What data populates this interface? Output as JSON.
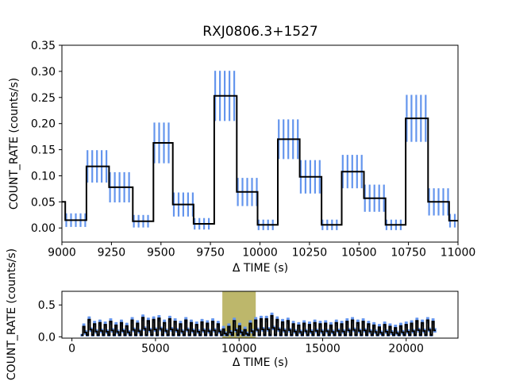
{
  "colors": {
    "line": "#000000",
    "errorbar": "#6495ED",
    "highlight": "#bdb76b",
    "axis": "#000000",
    "text": "#000000",
    "background": "#ffffff"
  },
  "chart_data": [
    {
      "type": "step",
      "title": "RXJ0806.3+1527",
      "xlabel": "Δ TIME (s)",
      "ylabel": "COUNT_RATE (counts/s)",
      "xlim": [
        9000,
        11000
      ],
      "ylim": [
        -0.027,
        0.35
      ],
      "xticks": [
        9000,
        9250,
        9500,
        9750,
        10000,
        10250,
        10500,
        10750,
        11000
      ],
      "xtick_labels": [
        "9000",
        "9250",
        "9500",
        "9750",
        "10000",
        "10250",
        "10500",
        "10750",
        "11000"
      ],
      "yticks": [
        0.0,
        0.05,
        0.1,
        0.15,
        0.2,
        0.25,
        0.3,
        0.35
      ],
      "ytick_labels": [
        "0.00",
        "0.05",
        "0.10",
        "0.15",
        "0.20",
        "0.25",
        "0.30",
        "0.35"
      ],
      "grid": false,
      "errorbar_spacing": 24,
      "errorbar_offset": 5,
      "segments": [
        {
          "t0": 9000,
          "t1": 9017,
          "y": 0.05,
          "err": 0
        },
        {
          "t0": 9017,
          "t1": 9124,
          "y": 0.015,
          "err": 0.013
        },
        {
          "t0": 9124,
          "t1": 9238,
          "y": 0.118,
          "err": 0.031
        },
        {
          "t0": 9238,
          "t1": 9358,
          "y": 0.078,
          "err": 0.029
        },
        {
          "t0": 9358,
          "t1": 9462,
          "y": 0.013,
          "err": 0.012
        },
        {
          "t0": 9462,
          "t1": 9560,
          "y": 0.163,
          "err": 0.039
        },
        {
          "t0": 9560,
          "t1": 9665,
          "y": 0.045,
          "err": 0.023
        },
        {
          "t0": 9665,
          "t1": 9769,
          "y": 0.008,
          "err": 0.011
        },
        {
          "t0": 9769,
          "t1": 9883,
          "y": 0.253,
          "err": 0.048
        },
        {
          "t0": 9883,
          "t1": 9988,
          "y": 0.069,
          "err": 0.027
        },
        {
          "t0": 9988,
          "t1": 10090,
          "y": 0.006,
          "err": 0.01
        },
        {
          "t0": 10090,
          "t1": 10201,
          "y": 0.17,
          "err": 0.038
        },
        {
          "t0": 10201,
          "t1": 10311,
          "y": 0.098,
          "err": 0.032
        },
        {
          "t0": 10311,
          "t1": 10413,
          "y": 0.006,
          "err": 0.01
        },
        {
          "t0": 10413,
          "t1": 10525,
          "y": 0.108,
          "err": 0.032
        },
        {
          "t0": 10525,
          "t1": 10634,
          "y": 0.057,
          "err": 0.026
        },
        {
          "t0": 10634,
          "t1": 10736,
          "y": 0.006,
          "err": 0.01
        },
        {
          "t0": 10736,
          "t1": 10849,
          "y": 0.21,
          "err": 0.045
        },
        {
          "t0": 10849,
          "t1": 10955,
          "y": 0.05,
          "err": 0.026
        },
        {
          "t0": 10955,
          "t1": 11000,
          "y": 0.014,
          "err": 0.013
        }
      ]
    },
    {
      "type": "step",
      "title": "",
      "xlabel": "Δ TIME (s)",
      "ylabel": "COUNT_RATE (counts/s)",
      "xlim": [
        -600,
        23100
      ],
      "ylim": [
        -0.021,
        0.715
      ],
      "xticks": [
        0,
        5000,
        10000,
        15000,
        20000
      ],
      "xtick_labels": [
        "0",
        "5000",
        "10000",
        "15000",
        "20000"
      ],
      "yticks": [
        0.0,
        0.5
      ],
      "ytick_labels": [
        "0.0",
        "0.5"
      ],
      "grid": false,
      "highlight_span": [
        9000,
        11000
      ],
      "errorbar_spacing": 40,
      "errorbar_offset": 14,
      "cycles": {
        "start": 550,
        "period": 321.5,
        "low": 0.025,
        "low_err": 0.02,
        "peak_err": 0.05,
        "mid_ratio": 0.42,
        "mid_err": 0.035,
        "peaks": [
          0.16,
          0.27,
          0.2,
          0.22,
          0.19,
          0.24,
          0.18,
          0.22,
          0.17,
          0.26,
          0.21,
          0.3,
          0.25,
          0.27,
          0.29,
          0.22,
          0.28,
          0.24,
          0.2,
          0.26,
          0.22,
          0.19,
          0.23,
          0.21,
          0.24,
          0.2,
          0.12,
          0.16,
          0.25,
          0.17,
          0.11,
          0.21,
          0.26,
          0.28,
          0.28,
          0.33,
          0.27,
          0.23,
          0.25,
          0.2,
          0.18,
          0.21,
          0.19,
          0.22,
          0.2,
          0.21,
          0.18,
          0.22,
          0.2,
          0.24,
          0.26,
          0.22,
          0.24,
          0.2,
          0.18,
          0.15,
          0.19,
          0.16,
          0.14,
          0.17,
          0.19,
          0.21,
          0.25,
          0.22,
          0.26,
          0.24
        ]
      }
    }
  ]
}
